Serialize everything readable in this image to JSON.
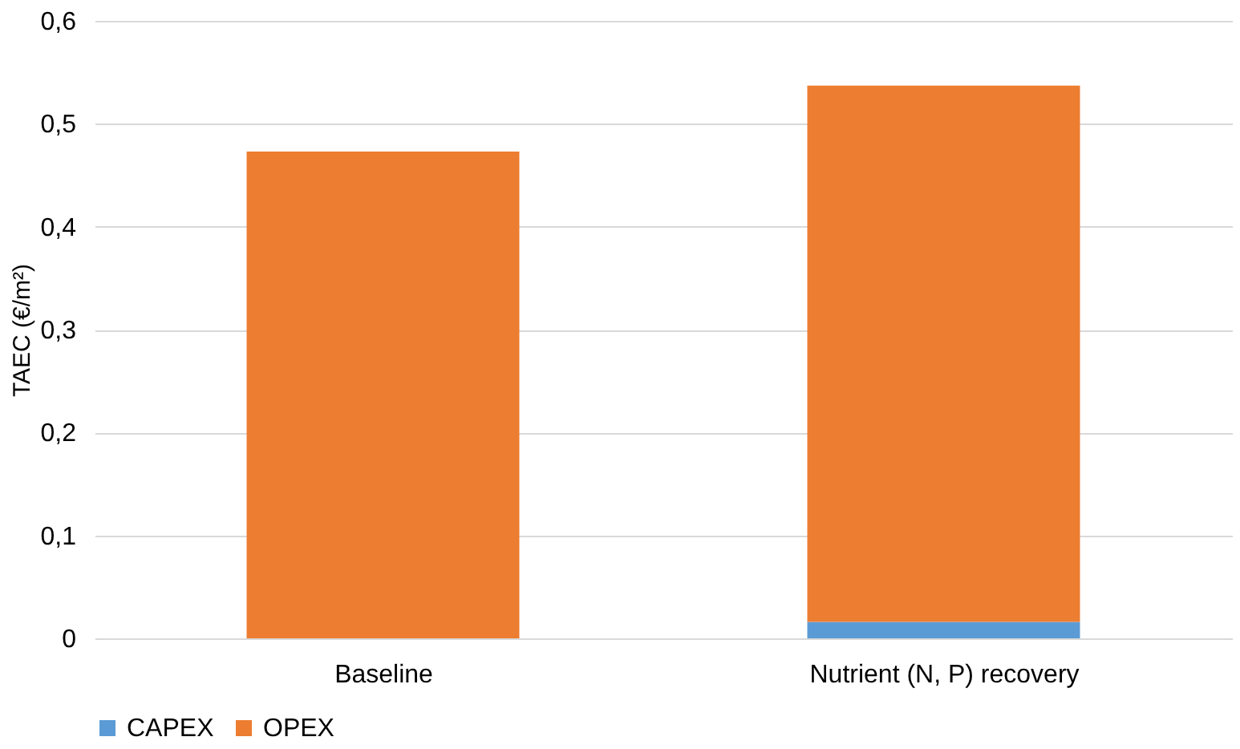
{
  "chart_data": {
    "type": "bar",
    "stacked": true,
    "ylabel": "TAEC (€/m²)",
    "categories": [
      "Baseline",
      "Nutrient (N, P) recovery"
    ],
    "series": [
      {
        "name": "CAPEX",
        "color": "#5b9bd5",
        "values": [
          0,
          0.016
        ]
      },
      {
        "name": "OPEX",
        "color": "#ed7d31",
        "values": [
          0.473,
          0.521
        ]
      }
    ],
    "ylim": [
      0,
      0.6
    ],
    "yticks": [
      0,
      {
        "value": 0.1,
        "label": "0,1"
      },
      {
        "value": 0.2,
        "label": "0,2"
      },
      {
        "value": 0.3,
        "label": "0,3"
      },
      {
        "value": 0.4,
        "label": "0,4"
      },
      {
        "value": 0.5,
        "label": "0,5"
      },
      {
        "value": 0.6,
        "label": "0,6"
      }
    ],
    "grid": "y",
    "legend": "bottom"
  }
}
